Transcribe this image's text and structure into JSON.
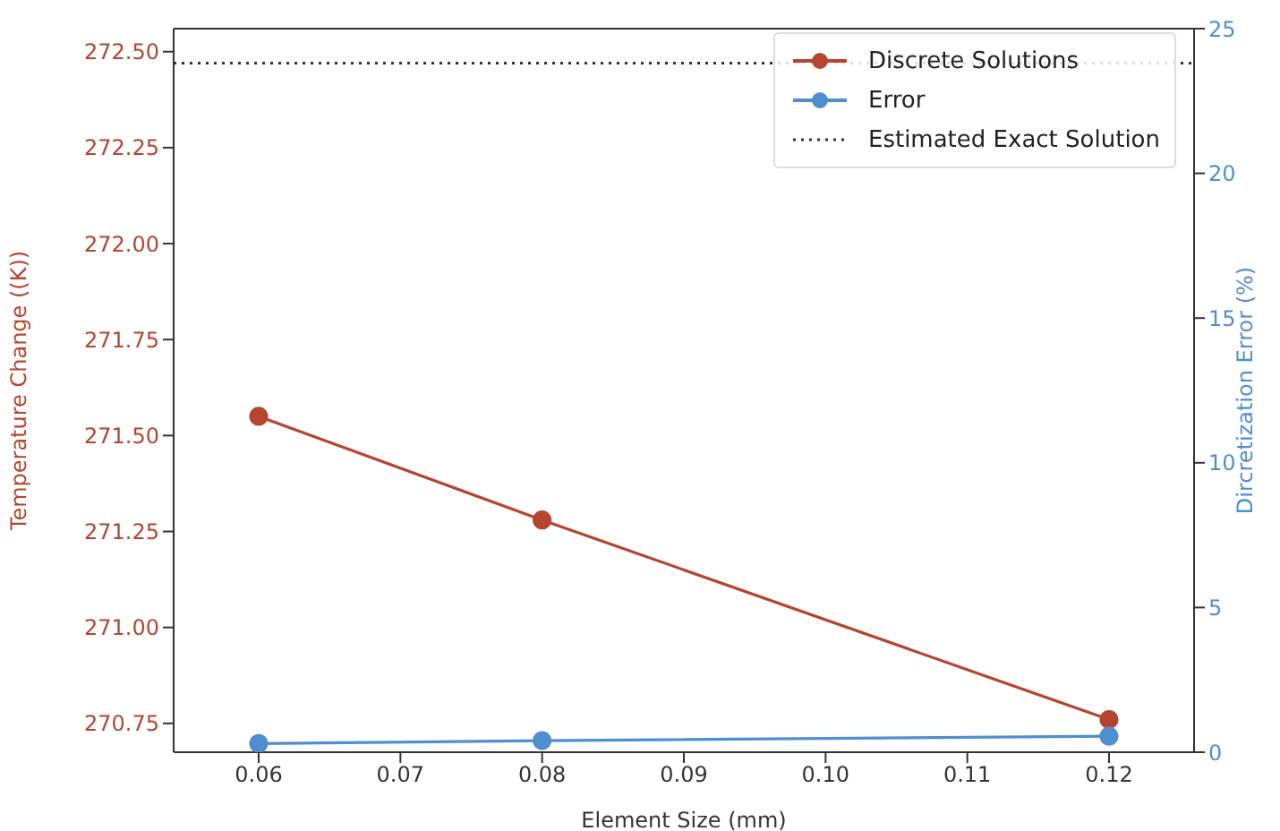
{
  "chart_data": {
    "type": "line",
    "xlabel": "Element Size (mm)",
    "ylabel": "Temperature Change ((K))",
    "y2label": "Dircretization Error (%)",
    "x": [
      0.06,
      0.08,
      0.12
    ],
    "series": [
      {
        "name": "Discrete Solutions",
        "color": "#b5452f",
        "values": [
          271.55,
          271.28,
          270.76
        ]
      },
      {
        "name": "Error",
        "color": "#4f8fcf",
        "axis": "y2",
        "values": [
          0.3,
          0.4,
          0.55
        ]
      }
    ],
    "xlim": [
      0.054,
      0.126
    ],
    "xticks": [
      0.06,
      0.07,
      0.08,
      0.09,
      {
        "value": 0.1,
        "label": "0.10"
      },
      0.11,
      0.12
    ],
    "ylim": [
      270.675,
      272.56
    ],
    "yticks": [
      {
        "value": 270.75,
        "label": "270.75"
      },
      {
        "value": 271,
        "label": "271.00"
      },
      {
        "value": 271.25,
        "label": "271.25"
      },
      {
        "value": 271.5,
        "label": "271.50"
      },
      {
        "value": 271.75,
        "label": "271.75"
      },
      {
        "value": 272,
        "label": "272.00"
      },
      {
        "value": 272.25,
        "label": "272.25"
      },
      {
        "value": 272.5,
        "label": "272.50"
      }
    ],
    "y2lim": [
      0,
      25
    ],
    "y2ticks": [
      0,
      5,
      10,
      15,
      20,
      25
    ],
    "ref_lines": [
      {
        "axis": "y",
        "value": 272.47,
        "label": "Estimated Exact Solution",
        "color": "#333333",
        "line_style": "dotted"
      }
    ],
    "marker": "circle",
    "line_style": "solid",
    "grid": false,
    "legend": "top right"
  }
}
